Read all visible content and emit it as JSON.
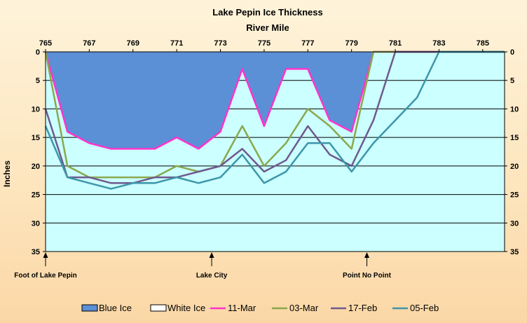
{
  "chart_data": {
    "type": "line",
    "title": "Lake Pepin Ice Thickness",
    "subtitle": "River Mile",
    "ylabel": "Inches",
    "xlim": [
      765,
      786
    ],
    "ylim": [
      0,
      35
    ],
    "y_inverted": true,
    "x_axis_position": "top",
    "x_ticks": [
      765,
      767,
      769,
      771,
      773,
      775,
      777,
      779,
      781,
      783,
      785
    ],
    "y_ticks": [
      0,
      5,
      10,
      15,
      20,
      25,
      30,
      35
    ],
    "grid": "horizontal",
    "legend_position": "bottom",
    "plot_background": "#ccffff",
    "legend": [
      {
        "label": "Blue Ice",
        "kind": "fill",
        "color": "#5b8fd6"
      },
      {
        "label": "White Ice",
        "kind": "fill",
        "color": "#ffffff"
      },
      {
        "label": "11-Mar",
        "kind": "line",
        "color": "#ff33cc"
      },
      {
        "label": "03-Mar",
        "kind": "line",
        "color": "#8aa84e"
      },
      {
        "label": "17-Feb",
        "kind": "line",
        "color": "#6e5a8e"
      },
      {
        "label": "05-Feb",
        "kind": "line",
        "color": "#3d96aa"
      }
    ],
    "area_series": [
      {
        "name": "Blue Ice",
        "color": "#5b8fd6",
        "x": [
          765,
          766,
          767,
          768,
          769,
          770,
          771,
          772,
          773,
          774,
          775,
          776,
          777,
          778,
          779,
          780
        ],
        "values": [
          0,
          14,
          16,
          17,
          17,
          17,
          15,
          17,
          14,
          3,
          13,
          3,
          3,
          12,
          14,
          0
        ]
      }
    ],
    "series": [
      {
        "name": "11-Mar",
        "color": "#ff33cc",
        "x": [
          765,
          766,
          767,
          768,
          769,
          770,
          771,
          772,
          773,
          774,
          775,
          776,
          777,
          778,
          779,
          780,
          781,
          782,
          783,
          784,
          785,
          786
        ],
        "values": [
          0,
          14,
          16,
          17,
          17,
          17,
          15,
          17,
          14,
          3,
          13,
          3,
          3,
          12,
          14,
          0,
          0,
          0,
          0,
          0,
          0,
          0
        ]
      },
      {
        "name": "03-Mar",
        "color": "#8aa84e",
        "x": [
          765,
          766,
          767,
          768,
          769,
          770,
          771,
          772,
          773,
          774,
          775,
          776,
          777,
          778,
          779,
          780,
          781,
          782,
          783,
          784,
          785,
          786
        ],
        "values": [
          0,
          20,
          22,
          22,
          22,
          22,
          20,
          21,
          20,
          13,
          20,
          16,
          10,
          13,
          17,
          0,
          0,
          0,
          0,
          0,
          0,
          0
        ]
      },
      {
        "name": "17-Feb",
        "color": "#6e5a8e",
        "x": [
          765,
          766,
          767,
          768,
          769,
          770,
          771,
          772,
          773,
          774,
          775,
          776,
          777,
          778,
          779,
          780,
          781,
          782,
          783,
          784,
          785,
          786
        ],
        "values": [
          10,
          22,
          22,
          23,
          23,
          22,
          22,
          21,
          20,
          17,
          21,
          19,
          13,
          18,
          20,
          12,
          0,
          0,
          0,
          0,
          0,
          0
        ]
      },
      {
        "name": "05-Feb",
        "color": "#3d96aa",
        "x": [
          765,
          766,
          767,
          768,
          769,
          770,
          771,
          772,
          773,
          774,
          775,
          776,
          777,
          778,
          779,
          780,
          781,
          782,
          783,
          784,
          785,
          786
        ],
        "values": [
          13,
          22,
          23,
          24,
          23,
          23,
          22,
          23,
          22,
          18,
          23,
          21,
          16,
          16,
          21,
          16,
          12,
          8,
          0,
          0,
          0,
          0
        ]
      }
    ],
    "annotations": [
      {
        "text": "Foot of Lake Pepin",
        "x": 765
      },
      {
        "text": "Lake City",
        "x": 772.6
      },
      {
        "text": "Point No Point",
        "x": 779.7
      }
    ]
  }
}
